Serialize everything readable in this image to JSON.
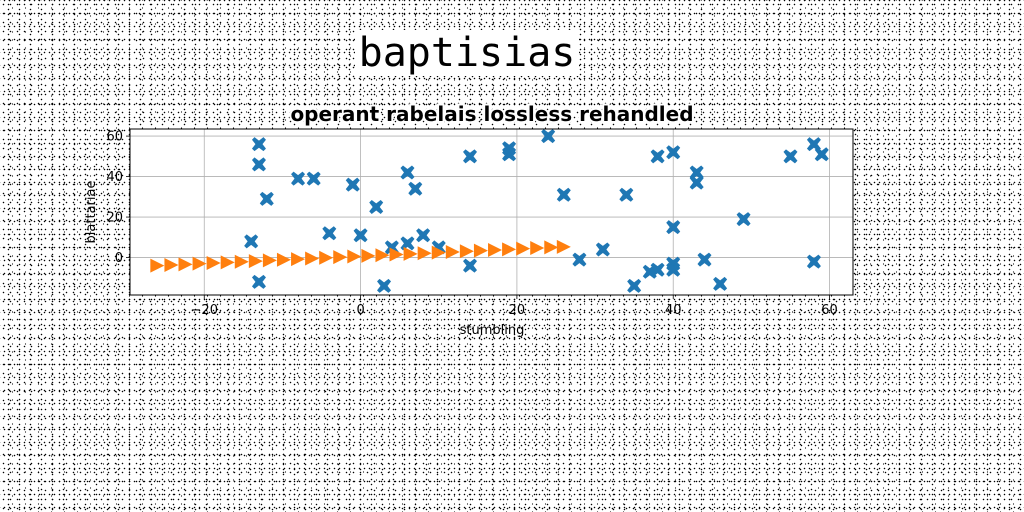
{
  "figure": {
    "suptitle": "baptisias"
  },
  "chart_data": {
    "type": "scatter",
    "title": "operant rabelais lossless rehandled",
    "xlabel": "stumbling",
    "ylabel": "blattariae",
    "xlim": [
      -29.5,
      63.0
    ],
    "ylim": [
      -18.5,
      63.5
    ],
    "xticks": [
      "−20",
      "0",
      "20",
      "40",
      "60"
    ],
    "xtick_values": [
      -20,
      0,
      20,
      40,
      60
    ],
    "yticks": [
      "0",
      "20",
      "40",
      "60"
    ],
    "ytick_values": [
      0,
      20,
      40,
      60
    ],
    "grid": true,
    "series": [
      {
        "marker": "X",
        "color": "#1f77b4",
        "x": [
          -13,
          -13,
          -14,
          -12,
          -13,
          -8,
          -6,
          -4,
          -1,
          0,
          2,
          3,
          4,
          6,
          6,
          7,
          8,
          10,
          14,
          14,
          19,
          19,
          24,
          26,
          28,
          31,
          34,
          35,
          37,
          38,
          38,
          40,
          40,
          40,
          40,
          43,
          43,
          44,
          46,
          49,
          55,
          58,
          58,
          59
        ],
        "y": [
          56,
          46,
          8,
          29,
          -12,
          39,
          39,
          12,
          36,
          11,
          25,
          -14,
          5,
          7,
          42,
          34,
          11,
          5,
          50,
          -4,
          51,
          54,
          60,
          31,
          -1,
          4,
          31,
          -14,
          -7,
          -6,
          50,
          52,
          15,
          -3,
          -6,
          42,
          37,
          -1,
          -13,
          19,
          50,
          56,
          -2,
          51
        ]
      },
      {
        "marker": ">",
        "color": "#ff7f0e",
        "x": [
          -26.0,
          -24.2,
          -22.4,
          -20.6,
          -18.8,
          -17.0,
          -15.2,
          -13.4,
          -11.6,
          -9.8,
          -8.0,
          -6.2,
          -4.4,
          -2.6,
          -0.8,
          1.0,
          2.8,
          4.6,
          6.4,
          8.2,
          10.0,
          11.8,
          13.6,
          15.4,
          17.2,
          19.0,
          20.8,
          22.6,
          24.4,
          26.0
        ],
        "y": [
          -4.0,
          -3.68,
          -3.36,
          -3.03,
          -2.71,
          -2.39,
          -2.07,
          -1.74,
          -1.42,
          -1.1,
          -0.78,
          -0.46,
          -0.13,
          0.19,
          0.51,
          0.83,
          1.16,
          1.48,
          1.8,
          2.12,
          2.44,
          2.77,
          3.09,
          3.41,
          3.73,
          4.06,
          4.38,
          4.7,
          5.02,
          5.3
        ]
      }
    ]
  }
}
